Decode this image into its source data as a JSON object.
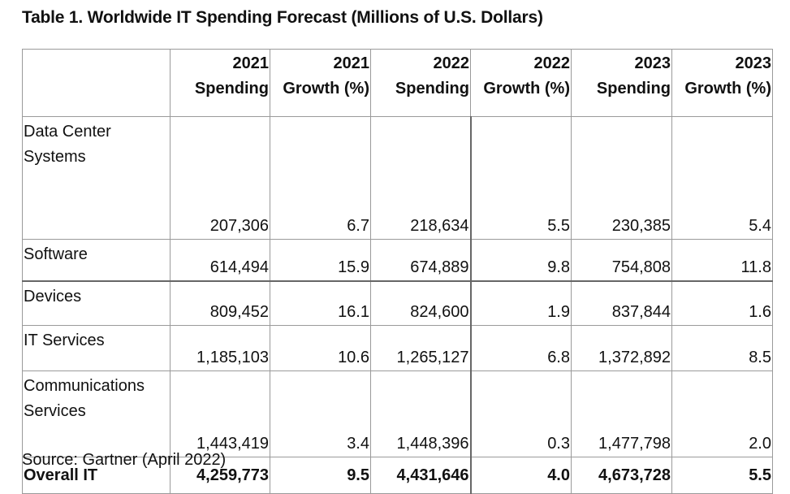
{
  "title": "Table 1. Worldwide IT Spending Forecast (Millions of U.S. Dollars)",
  "headers": [
    {
      "year": "",
      "metric": ""
    },
    {
      "year": "2021",
      "metric": "Spending"
    },
    {
      "year": "2021",
      "metric": "Growth (%)"
    },
    {
      "year": "2022",
      "metric": "Spending"
    },
    {
      "year": "2022",
      "metric": "Growth (%)"
    },
    {
      "year": "2023",
      "metric": "Spending"
    },
    {
      "year": "2023",
      "metric": "Growth (%)"
    }
  ],
  "rows": [
    {
      "label": "Data Center Systems",
      "values": [
        "207,306",
        "6.7",
        "218,634",
        "5.5",
        "230,385",
        "5.4"
      ]
    },
    {
      "label": "Software",
      "values": [
        "614,494",
        "15.9",
        "674,889",
        "9.8",
        "754,808",
        "11.8"
      ]
    },
    {
      "label": "Devices",
      "values": [
        "809,452",
        "16.1",
        "824,600",
        "1.9",
        "837,844",
        "1.6"
      ]
    },
    {
      "label": "IT Services",
      "values": [
        "1,185,103",
        "10.6",
        "1,265,127",
        "6.8",
        "1,372,892",
        "8.5"
      ]
    },
    {
      "label": "Communications Services",
      "values": [
        "1,443,419",
        "3.4",
        "1,448,396",
        "0.3",
        "1,477,798",
        "2.0"
      ]
    },
    {
      "label": "Overall IT",
      "values": [
        "4,259,773",
        "9.5",
        "4,431,646",
        "4.0",
        "4,673,728",
        "5.5"
      ]
    }
  ],
  "source": "Source: Gartner (April 2022)"
}
